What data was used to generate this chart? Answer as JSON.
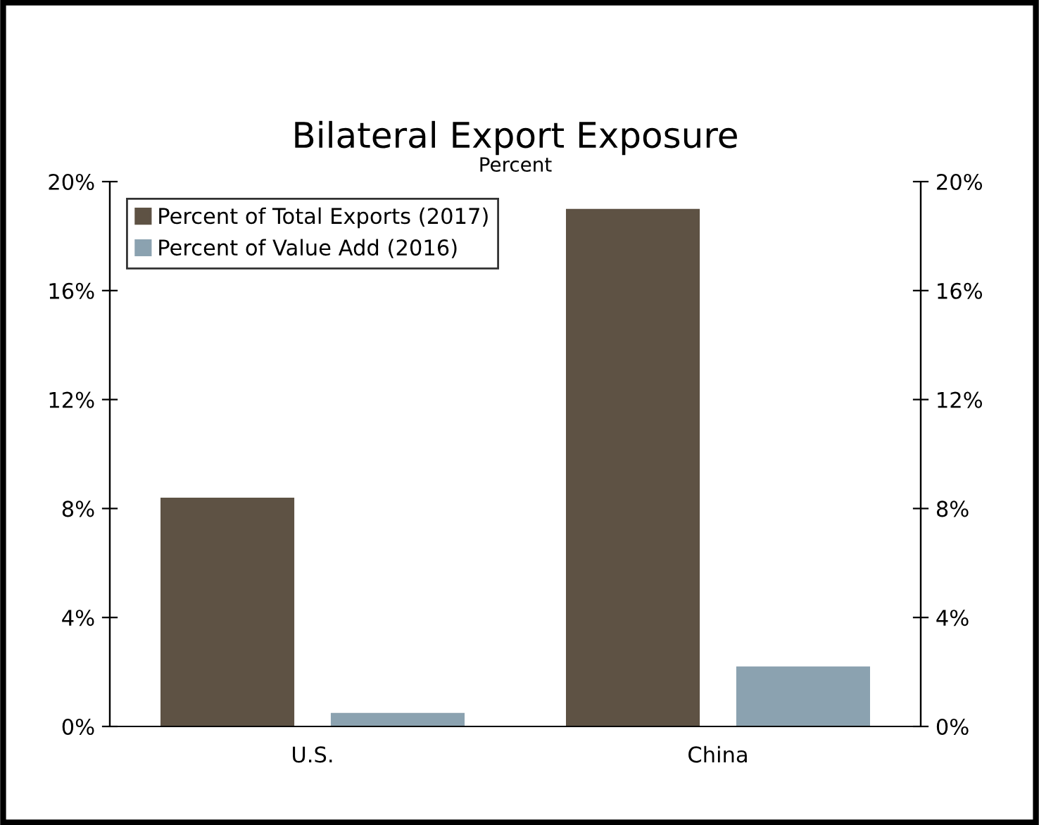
{
  "chart_data": {
    "type": "bar",
    "title": "Bilateral Export Exposure",
    "subtitle": "Percent",
    "categories": [
      "U.S.",
      "China"
    ],
    "series": [
      {
        "name": "Percent of Total Exports (2017)",
        "color": "#5e5244",
        "values": [
          8.4,
          19.0
        ]
      },
      {
        "name": "Percent of Value Add (2016)",
        "color": "#8ba2b0",
        "values": [
          0.5,
          2.2
        ]
      }
    ],
    "ylim": [
      0,
      20
    ],
    "yticks": [
      {
        "value": 0,
        "label": "0%"
      },
      {
        "value": 4,
        "label": "4%"
      },
      {
        "value": 8,
        "label": "8%"
      },
      {
        "value": 12,
        "label": "12%"
      },
      {
        "value": 16,
        "label": "16%"
      },
      {
        "value": 20,
        "label": "20%"
      }
    ],
    "y2lim": [
      0,
      20
    ],
    "y2ticks": [
      {
        "value": 0,
        "label": "0%"
      },
      {
        "value": 4,
        "label": "4%"
      },
      {
        "value": 8,
        "label": "8%"
      },
      {
        "value": 12,
        "label": "12%"
      },
      {
        "value": 16,
        "label": "16%"
      },
      {
        "value": 20,
        "label": "20%"
      }
    ],
    "grid": false,
    "legend": "top left"
  }
}
